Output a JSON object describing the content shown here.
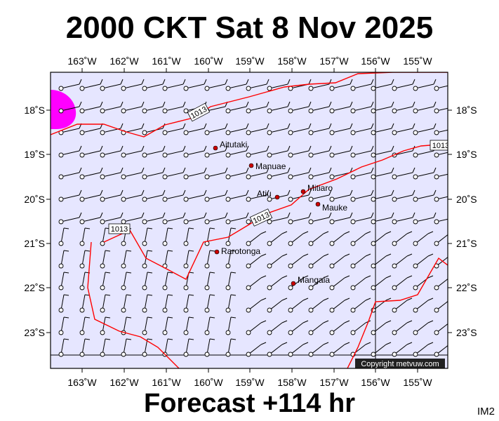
{
  "title": "2000 CKT Sat 8 Nov 2025",
  "footer": "Forecast +114 hr",
  "image_code": "IM2",
  "copyright": "Copyright metvuw.com",
  "colors": {
    "ocean": "#e6e6ff",
    "isobar": "#ff0000",
    "precip": "#ff00ff",
    "island": "#cc0000"
  },
  "longitude_labels": [
    "163˚W",
    "162˚W",
    "161˚W",
    "160˚W",
    "159˚W",
    "158˚W",
    "157˚W",
    "156˚W",
    "155˚W"
  ],
  "latitude_labels": [
    "18˚S",
    "19˚S",
    "20˚S",
    "21˚S",
    "22˚S",
    "23˚S"
  ],
  "islands": [
    {
      "name": "Aitutaki"
    },
    {
      "name": "Manuae"
    },
    {
      "name": "Atiu"
    },
    {
      "name": "Mitiaro"
    },
    {
      "name": "Mauke"
    },
    {
      "name": "Rarotonga"
    },
    {
      "name": "Mangaia"
    }
  ],
  "isobar_labels": [
    "1013",
    "1013",
    "1013",
    "1013"
  ]
}
